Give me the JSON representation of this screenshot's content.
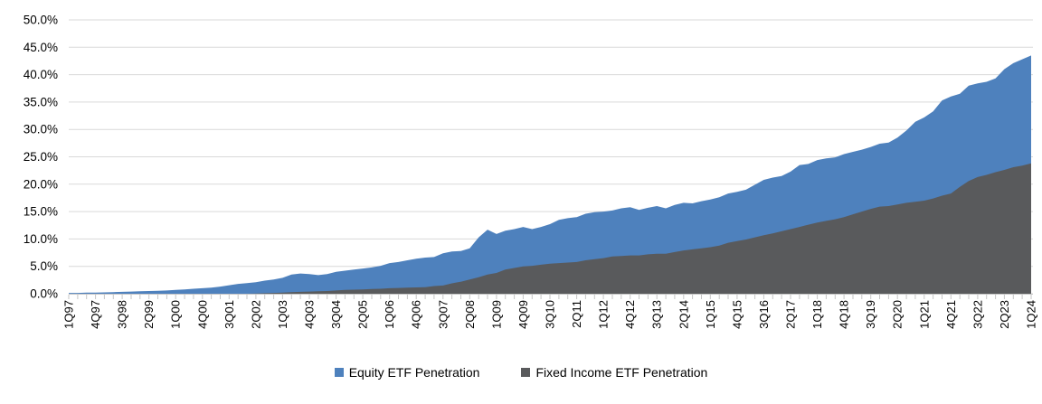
{
  "chart_data": {
    "type": "area",
    "title": "",
    "xlabel": "",
    "ylabel": "",
    "ylim": [
      0,
      50
    ],
    "y_step": 5,
    "grid": true,
    "legend_position": "bottom",
    "overlapping_series": true,
    "x_label_every": 3,
    "y_tick_labels": [
      "0.0%",
      "5.0%",
      "10.0%",
      "15.0%",
      "20.0%",
      "25.0%",
      "30.0%",
      "35.0%",
      "40.0%",
      "45.0%",
      "50.0%"
    ],
    "x_tick_labels": [
      "1Q97",
      "4Q97",
      "3Q98",
      "2Q99",
      "1Q00",
      "4Q00",
      "3Q01",
      "2Q02",
      "1Q03",
      "4Q03",
      "3Q04",
      "2Q05",
      "1Q06",
      "4Q06",
      "3Q07",
      "2Q08",
      "1Q09",
      "4Q09",
      "3Q10",
      "2Q11",
      "1Q12",
      "4Q12",
      "3Q13",
      "2Q14",
      "1Q15",
      "4Q15",
      "3Q16",
      "2Q17",
      "1Q18",
      "4Q18",
      "3Q19",
      "2Q20",
      "1Q21",
      "4Q21",
      "3Q22",
      "2Q23",
      "1Q24"
    ],
    "categories": [
      "1Q97",
      "2Q97",
      "3Q97",
      "4Q97",
      "1Q98",
      "2Q98",
      "3Q98",
      "4Q98",
      "1Q99",
      "2Q99",
      "3Q99",
      "4Q99",
      "1Q00",
      "2Q00",
      "3Q00",
      "4Q00",
      "1Q01",
      "2Q01",
      "3Q01",
      "4Q01",
      "1Q02",
      "2Q02",
      "3Q02",
      "4Q02",
      "1Q03",
      "2Q03",
      "3Q03",
      "4Q03",
      "1Q04",
      "2Q04",
      "3Q04",
      "4Q04",
      "1Q05",
      "2Q05",
      "3Q05",
      "4Q05",
      "1Q06",
      "2Q06",
      "3Q06",
      "4Q06",
      "1Q07",
      "2Q07",
      "3Q07",
      "4Q07",
      "1Q08",
      "2Q08",
      "3Q08",
      "4Q08",
      "1Q09",
      "2Q09",
      "3Q09",
      "4Q09",
      "1Q10",
      "2Q10",
      "3Q10",
      "4Q10",
      "1Q11",
      "2Q11",
      "3Q11",
      "4Q11",
      "1Q12",
      "2Q12",
      "3Q12",
      "4Q12",
      "1Q13",
      "2Q13",
      "3Q13",
      "4Q13",
      "1Q14",
      "2Q14",
      "3Q14",
      "4Q14",
      "1Q15",
      "2Q15",
      "3Q15",
      "4Q15",
      "1Q16",
      "2Q16",
      "3Q16",
      "4Q16",
      "1Q17",
      "2Q17",
      "3Q17",
      "4Q17",
      "1Q18",
      "2Q18",
      "3Q18",
      "4Q18",
      "1Q19",
      "2Q19",
      "3Q19",
      "4Q19",
      "1Q20",
      "2Q20",
      "3Q20",
      "4Q20",
      "1Q21",
      "2Q21",
      "3Q21",
      "4Q21",
      "1Q22",
      "2Q22",
      "3Q22",
      "4Q22",
      "1Q23",
      "2Q23",
      "3Q23",
      "4Q23",
      "1Q24"
    ],
    "series": [
      {
        "name": "Equity ETF Penetration",
        "color": "#4E81BD",
        "values": [
          0.15,
          0.15,
          0.2,
          0.2,
          0.25,
          0.3,
          0.35,
          0.4,
          0.45,
          0.5,
          0.55,
          0.6,
          0.7,
          0.8,
          0.9,
          1.0,
          1.1,
          1.3,
          1.55,
          1.8,
          1.95,
          2.1,
          2.4,
          2.6,
          2.9,
          3.5,
          3.7,
          3.6,
          3.4,
          3.6,
          4.0,
          4.2,
          4.4,
          4.6,
          4.8,
          5.1,
          5.6,
          5.8,
          6.1,
          6.4,
          6.6,
          6.7,
          7.4,
          7.7,
          7.8,
          8.3,
          10.3,
          11.7,
          10.9,
          11.5,
          11.8,
          12.2,
          11.8,
          12.2,
          12.7,
          13.5,
          13.8,
          14.0,
          14.6,
          14.9,
          15.0,
          15.2,
          15.6,
          15.8,
          15.3,
          15.7,
          16.0,
          15.6,
          16.2,
          16.6,
          16.5,
          16.9,
          17.2,
          17.6,
          18.3,
          18.6,
          19.0,
          19.9,
          20.8,
          21.2,
          21.5,
          22.3,
          23.5,
          23.7,
          24.4,
          24.7,
          24.9,
          25.5,
          25.9,
          26.3,
          26.8,
          27.4,
          27.6,
          28.5,
          29.8,
          31.4,
          32.2,
          33.3,
          35.3,
          36.0,
          36.5,
          38.0,
          38.4,
          38.7,
          39.3,
          41.0,
          42.1,
          42.8,
          43.5
        ]
      },
      {
        "name": "Fixed Income ETF Penetration",
        "color": "#595A5C",
        "values": [
          0,
          0,
          0,
          0,
          0,
          0,
          0,
          0,
          0,
          0,
          0,
          0,
          0,
          0,
          0,
          0,
          0,
          0,
          0,
          0,
          0.0,
          0.05,
          0.1,
          0.15,
          0.2,
          0.3,
          0.35,
          0.4,
          0.45,
          0.5,
          0.6,
          0.7,
          0.75,
          0.8,
          0.85,
          0.9,
          1.0,
          1.05,
          1.1,
          1.15,
          1.2,
          1.4,
          1.5,
          1.9,
          2.2,
          2.6,
          3.0,
          3.5,
          3.8,
          4.4,
          4.7,
          5.0,
          5.1,
          5.3,
          5.5,
          5.6,
          5.7,
          5.8,
          6.1,
          6.3,
          6.5,
          6.8,
          6.9,
          7.0,
          7.0,
          7.2,
          7.3,
          7.3,
          7.6,
          7.9,
          8.1,
          8.3,
          8.5,
          8.8,
          9.3,
          9.6,
          9.9,
          10.3,
          10.7,
          11.0,
          11.4,
          11.8,
          12.2,
          12.6,
          13.0,
          13.3,
          13.6,
          14.0,
          14.5,
          15.0,
          15.5,
          15.9,
          16.0,
          16.3,
          16.6,
          16.8,
          17.0,
          17.4,
          17.9,
          18.3,
          19.5,
          20.6,
          21.3,
          21.7,
          22.2,
          22.6,
          23.1,
          23.4,
          23.8
        ]
      }
    ]
  },
  "legend": {
    "equity_label": "Equity ETF Penetration",
    "fixed_income_label": "Fixed Income ETF Penetration"
  },
  "colors": {
    "background": "#FFFFFF",
    "gridline": "#D9D9D9",
    "axis": "#C6C6C6",
    "text": "#000000"
  }
}
